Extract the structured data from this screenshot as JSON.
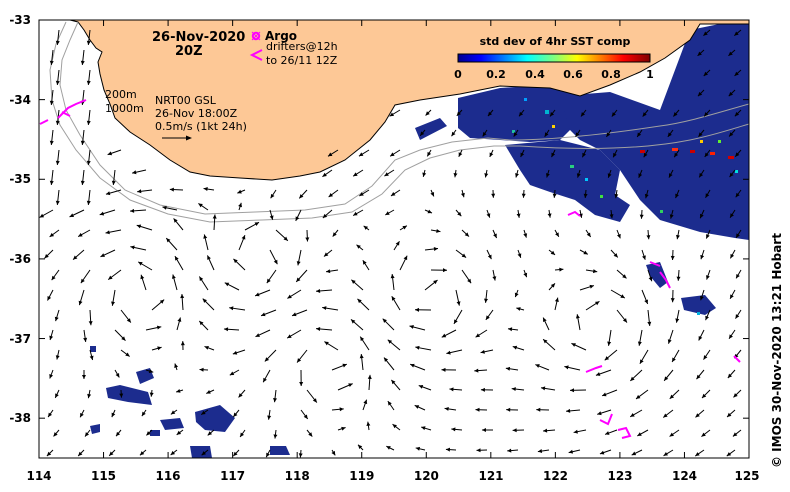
{
  "header": {
    "date": "26-Nov-2020",
    "time": "20Z"
  },
  "legend": {
    "argo_label": "Argo",
    "drifters_line1": "drifters@12h",
    "drifters_line2": "to 26/11 12Z"
  },
  "info": {
    "contour1": "200m",
    "contour2": "1000m",
    "product": "NRT00 GSL",
    "valid_time": "26-Nov 18:00Z",
    "scale_note": "0.5m/s (1kt 24h)"
  },
  "colorbar": {
    "title": "std dev of 4hr SST comp",
    "ticks": [
      "0",
      "0.2",
      "0.4",
      "0.6",
      "0.8",
      "1"
    ]
  },
  "credit": "© IMOS 30-Nov-2020 13:21 Hobart",
  "axes": {
    "lon_ticks": [
      "114",
      "115",
      "116",
      "117",
      "118",
      "119",
      "120",
      "121",
      "122",
      "123",
      "124",
      "125"
    ],
    "lat_ticks": [
      "-33",
      "-34",
      "-35",
      "-36",
      "-37",
      "-38"
    ],
    "lon_range": [
      114,
      125
    ],
    "lat_range": [
      -38.5,
      -33
    ]
  },
  "colors": {
    "land": "#fdc896",
    "sst_low": "#1a2a8c",
    "drifters": "#ff00ff",
    "contour": "#a0a0a0"
  }
}
